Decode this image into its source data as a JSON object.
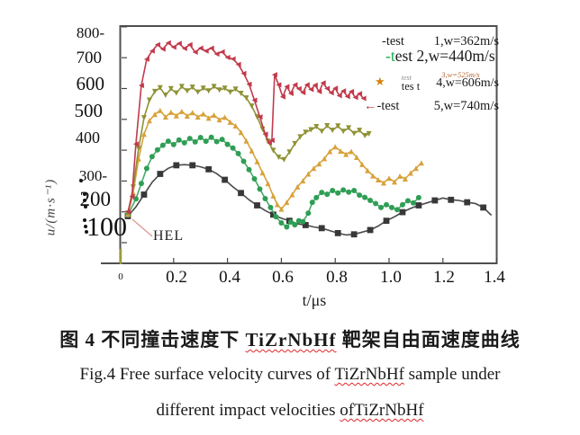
{
  "axes": {
    "x_label": "t/μs",
    "y_label": "u/(m·s⁻¹)",
    "y_tick_labels": [
      "800-",
      "700",
      "600",
      "500",
      "400",
      "300-",
      "200",
      "100"
    ],
    "x_tick_labels": [
      "0",
      "0.2",
      "0.4",
      "0.6",
      "0.8",
      "1.0",
      "1.2",
      "1.4"
    ]
  },
  "annotations": {
    "hel": "HEL"
  },
  "legend": {
    "rows": [
      {
        "left": "-test",
        "right": "1,w=362m/s"
      },
      {
        "pre": "-t",
        "rest": " est 2,w=440m/s"
      },
      {
        "icon": "★",
        "stack_top": "test",
        "stack_bottom": "tes t",
        "overlay": "3,w=525m/s",
        "right": "4,w=606m/s"
      },
      {
        "arrow": "←",
        "left": "-test",
        "right": "5,w=740m/s"
      }
    ]
  },
  "caption": {
    "zh": {
      "pre": "图 4  不同撞击速度下 ",
      "keyword": "TiZrNbHf",
      "post": " 靶架自由面速度曲线"
    },
    "en1": {
      "pre": "Fig.4  Free surface velocity curves of ",
      "keyword": "TiZrNbHf",
      "post": " sample under"
    },
    "en2": {
      "pre": "different impact velocities ",
      "keyword": "ofTiZrNbHf",
      "post": ""
    }
  },
  "colors": {
    "test1_black": "#4a4a4a",
    "test2_green": "#47ab68",
    "test3_orange": "#d7a23b",
    "test4_olive": "#8e9233",
    "test5_red": "#c23a4c",
    "wavy_underline": "#e0262b",
    "hel_line": "#e59a9a"
  },
  "chart_data": {
    "type": "line",
    "title": "Free surface velocity curves of TiZrNbHf sample under different impact velocities",
    "xlabel": "t/μs",
    "ylabel": "u/(m·s⁻¹)",
    "xlim": [
      0,
      1.4
    ],
    "ylim": [
      100,
      800
    ],
    "x_ticks": [
      0.2,
      0.4,
      0.6,
      0.8,
      1.0,
      1.2,
      1.4
    ],
    "y_ticks": [
      100,
      200,
      300,
      400,
      500,
      600,
      700,
      800
    ],
    "grid": false,
    "legend_position": "top-right",
    "annotation": "HEL (Hugoniot elastic limit) marked at curve onset ~200 m/s",
    "series": [
      {
        "id": "test-1",
        "name": "test 1, w=362 m/s",
        "color": "#4a4a4a",
        "marker": "square",
        "marker_color": "#383838",
        "marker_every": 2,
        "marker_size": 3.4,
        "points": [
          [
            0.03,
            186
          ],
          [
            0.06,
            216
          ],
          [
            0.09,
            256
          ],
          [
            0.12,
            296
          ],
          [
            0.15,
            323
          ],
          [
            0.18,
            341
          ],
          [
            0.21,
            351
          ],
          [
            0.24,
            353
          ],
          [
            0.27,
            351
          ],
          [
            0.3,
            346
          ],
          [
            0.33,
            338
          ],
          [
            0.36,
            324
          ],
          [
            0.39,
            304
          ],
          [
            0.42,
            281
          ],
          [
            0.45,
            261
          ],
          [
            0.48,
            239
          ],
          [
            0.51,
            221
          ],
          [
            0.54,
            204
          ],
          [
            0.57,
            191
          ],
          [
            0.6,
            179
          ],
          [
            0.63,
            171
          ],
          [
            0.66,
            161
          ],
          [
            0.69,
            157
          ],
          [
            0.72,
            151
          ],
          [
            0.75,
            147
          ],
          [
            0.78,
            139
          ],
          [
            0.81,
            131
          ],
          [
            0.84,
            125
          ],
          [
            0.87,
            127
          ],
          [
            0.9,
            134
          ],
          [
            0.93,
            141
          ],
          [
            0.96,
            154
          ],
          [
            0.99,
            171
          ],
          [
            1.02,
            184
          ],
          [
            1.05,
            199
          ],
          [
            1.08,
            211
          ],
          [
            1.11,
            221
          ],
          [
            1.14,
            229
          ],
          [
            1.17,
            237
          ],
          [
            1.2,
            245
          ],
          [
            1.23,
            239
          ],
          [
            1.26,
            237
          ],
          [
            1.29,
            231
          ],
          [
            1.32,
            227
          ],
          [
            1.35,
            214
          ],
          [
            1.38,
            189
          ]
        ]
      },
      {
        "id": "test-2",
        "name": "test 2, w=440 m/s",
        "color": "#47ab68",
        "marker": "circle",
        "marker_color": "#2f9e55",
        "marker_every": 1,
        "marker_size": 3,
        "points": [
          [
            0.03,
            190
          ],
          [
            0.06,
            242
          ],
          [
            0.08,
            292
          ],
          [
            0.1,
            341
          ],
          [
            0.12,
            379
          ],
          [
            0.14,
            401
          ],
          [
            0.16,
            416
          ],
          [
            0.18,
            429
          ],
          [
            0.2,
            418
          ],
          [
            0.22,
            433
          ],
          [
            0.24,
            424
          ],
          [
            0.26,
            438
          ],
          [
            0.28,
            427
          ],
          [
            0.3,
            441
          ],
          [
            0.32,
            429
          ],
          [
            0.34,
            442
          ],
          [
            0.36,
            428
          ],
          [
            0.38,
            435
          ],
          [
            0.4,
            419
          ],
          [
            0.42,
            407
          ],
          [
            0.44,
            389
          ],
          [
            0.46,
            364
          ],
          [
            0.48,
            337
          ],
          [
            0.5,
            307
          ],
          [
            0.52,
            274
          ],
          [
            0.54,
            243
          ],
          [
            0.56,
            214
          ],
          [
            0.58,
            184
          ],
          [
            0.6,
            164
          ],
          [
            0.62,
            151
          ],
          [
            0.635,
            167
          ],
          [
            0.65,
            158
          ],
          [
            0.665,
            171
          ],
          [
            0.68,
            168
          ],
          [
            0.7,
            196
          ],
          [
            0.715,
            231
          ],
          [
            0.73,
            246
          ],
          [
            0.75,
            263
          ],
          [
            0.77,
            257
          ],
          [
            0.79,
            269
          ],
          [
            0.81,
            261
          ],
          [
            0.83,
            271
          ],
          [
            0.85,
            264
          ],
          [
            0.87,
            269
          ],
          [
            0.89,
            254
          ],
          [
            0.91,
            247
          ],
          [
            0.93,
            237
          ],
          [
            0.95,
            227
          ],
          [
            0.97,
            214
          ],
          [
            0.99,
            223
          ],
          [
            1.01,
            214
          ],
          [
            1.03,
            207
          ],
          [
            1.05,
            223
          ],
          [
            1.07,
            236
          ],
          [
            1.09,
            229
          ],
          [
            1.11,
            246
          ]
        ]
      },
      {
        "id": "test-3",
        "name": "test 3, w=525 m/s",
        "color": "#d7a23b",
        "marker": "triangle-up",
        "marker_color": "#d7a23b",
        "marker_every": 1,
        "marker_size": 3,
        "points": [
          [
            0.03,
            192
          ],
          [
            0.05,
            262
          ],
          [
            0.07,
            372
          ],
          [
            0.09,
            452
          ],
          [
            0.11,
            496
          ],
          [
            0.13,
            516
          ],
          [
            0.15,
            529
          ],
          [
            0.17,
            508
          ],
          [
            0.19,
            523
          ],
          [
            0.21,
            512
          ],
          [
            0.23,
            526
          ],
          [
            0.25,
            511
          ],
          [
            0.27,
            522
          ],
          [
            0.29,
            508
          ],
          [
            0.31,
            518
          ],
          [
            0.33,
            504
          ],
          [
            0.35,
            514
          ],
          [
            0.37,
            499
          ],
          [
            0.39,
            507
          ],
          [
            0.41,
            491
          ],
          [
            0.43,
            479
          ],
          [
            0.45,
            458
          ],
          [
            0.47,
            430
          ],
          [
            0.49,
            398
          ],
          [
            0.51,
            363
          ],
          [
            0.53,
            327
          ],
          [
            0.55,
            292
          ],
          [
            0.57,
            252
          ],
          [
            0.585,
            224
          ],
          [
            0.6,
            209
          ],
          [
            0.62,
            231
          ],
          [
            0.64,
            256
          ],
          [
            0.66,
            281
          ],
          [
            0.68,
            301
          ],
          [
            0.7,
            323
          ],
          [
            0.72,
            341
          ],
          [
            0.74,
            356
          ],
          [
            0.76,
            373
          ],
          [
            0.78,
            396
          ],
          [
            0.8,
            411
          ],
          [
            0.82,
            397
          ],
          [
            0.84,
            387
          ],
          [
            0.86,
            396
          ],
          [
            0.88,
            377
          ],
          [
            0.9,
            354
          ],
          [
            0.92,
            334
          ],
          [
            0.94,
            317
          ],
          [
            0.96,
            304
          ],
          [
            0.98,
            294
          ],
          [
            1.0,
            309
          ],
          [
            1.02,
            297
          ],
          [
            1.04,
            316
          ],
          [
            1.06,
            307
          ],
          [
            1.08,
            326
          ],
          [
            1.1,
            341
          ],
          [
            1.12,
            359
          ]
        ]
      },
      {
        "id": "test-4",
        "name": "test 4, w=606 m/s",
        "color": "#8e9233",
        "marker": "triangle-down",
        "marker_color": "#8e9233",
        "marker_every": 1,
        "marker_size": 3,
        "points": [
          [
            0.03,
            196
          ],
          [
            0.05,
            280
          ],
          [
            0.07,
            405
          ],
          [
            0.09,
            505
          ],
          [
            0.11,
            562
          ],
          [
            0.13,
            590
          ],
          [
            0.15,
            602
          ],
          [
            0.17,
            578
          ],
          [
            0.19,
            599
          ],
          [
            0.21,
            585
          ],
          [
            0.23,
            606
          ],
          [
            0.25,
            592
          ],
          [
            0.27,
            604
          ],
          [
            0.29,
            588
          ],
          [
            0.31,
            601
          ],
          [
            0.33,
            592
          ],
          [
            0.35,
            606
          ],
          [
            0.37,
            595
          ],
          [
            0.39,
            601
          ],
          [
            0.41,
            588
          ],
          [
            0.43,
            598
          ],
          [
            0.45,
            584
          ],
          [
            0.47,
            569
          ],
          [
            0.49,
            543
          ],
          [
            0.51,
            508
          ],
          [
            0.53,
            468
          ],
          [
            0.55,
            429
          ],
          [
            0.57,
            399
          ],
          [
            0.59,
            377
          ],
          [
            0.61,
            369
          ],
          [
            0.63,
            394
          ],
          [
            0.65,
            421
          ],
          [
            0.67,
            443
          ],
          [
            0.69,
            458
          ],
          [
            0.71,
            466
          ],
          [
            0.73,
            476
          ],
          [
            0.75,
            461
          ],
          [
            0.77,
            479
          ],
          [
            0.79,
            464
          ],
          [
            0.81,
            478
          ],
          [
            0.83,
            461
          ],
          [
            0.85,
            472
          ],
          [
            0.87,
            454
          ],
          [
            0.89,
            464
          ],
          [
            0.91,
            447
          ],
          [
            0.925,
            453
          ]
        ]
      },
      {
        "id": "test-5",
        "name": "test 5, w=740 m/s",
        "color": "#c23a4c",
        "marker": "triangle-left",
        "marker_color": "#c23a4c",
        "marker_every": 1,
        "marker_size": 3,
        "points": [
          [
            0.03,
            200
          ],
          [
            0.045,
            250
          ],
          [
            0.06,
            420
          ],
          [
            0.08,
            610
          ],
          [
            0.1,
            695
          ],
          [
            0.12,
            722
          ],
          [
            0.14,
            742
          ],
          [
            0.16,
            728
          ],
          [
            0.18,
            748
          ],
          [
            0.2,
            734
          ],
          [
            0.22,
            746
          ],
          [
            0.24,
            730
          ],
          [
            0.26,
            742
          ],
          [
            0.28,
            718
          ],
          [
            0.3,
            731
          ],
          [
            0.32,
            722
          ],
          [
            0.34,
            731
          ],
          [
            0.36,
            712
          ],
          [
            0.38,
            719
          ],
          [
            0.4,
            701
          ],
          [
            0.42,
            696
          ],
          [
            0.44,
            678
          ],
          [
            0.46,
            649
          ],
          [
            0.48,
            614
          ],
          [
            0.5,
            562
          ],
          [
            0.52,
            508
          ],
          [
            0.54,
            452
          ],
          [
            0.555,
            424
          ],
          [
            0.565,
            432
          ],
          [
            0.575,
            645
          ],
          [
            0.59,
            612
          ],
          [
            0.605,
            573
          ],
          [
            0.62,
            606
          ],
          [
            0.635,
            584
          ],
          [
            0.65,
            612
          ],
          [
            0.665,
            599
          ],
          [
            0.68,
            587
          ],
          [
            0.695,
            612
          ],
          [
            0.71,
            597
          ],
          [
            0.725,
            611
          ],
          [
            0.74,
            590
          ],
          [
            0.755,
            618
          ],
          [
            0.77,
            600
          ],
          [
            0.785,
            586
          ],
          [
            0.8,
            601
          ],
          [
            0.815,
            577
          ],
          [
            0.83,
            592
          ],
          [
            0.845,
            574
          ],
          [
            0.86,
            590
          ],
          [
            0.875,
            571
          ],
          [
            0.89,
            583
          ],
          [
            0.905,
            568
          ]
        ]
      }
    ]
  }
}
